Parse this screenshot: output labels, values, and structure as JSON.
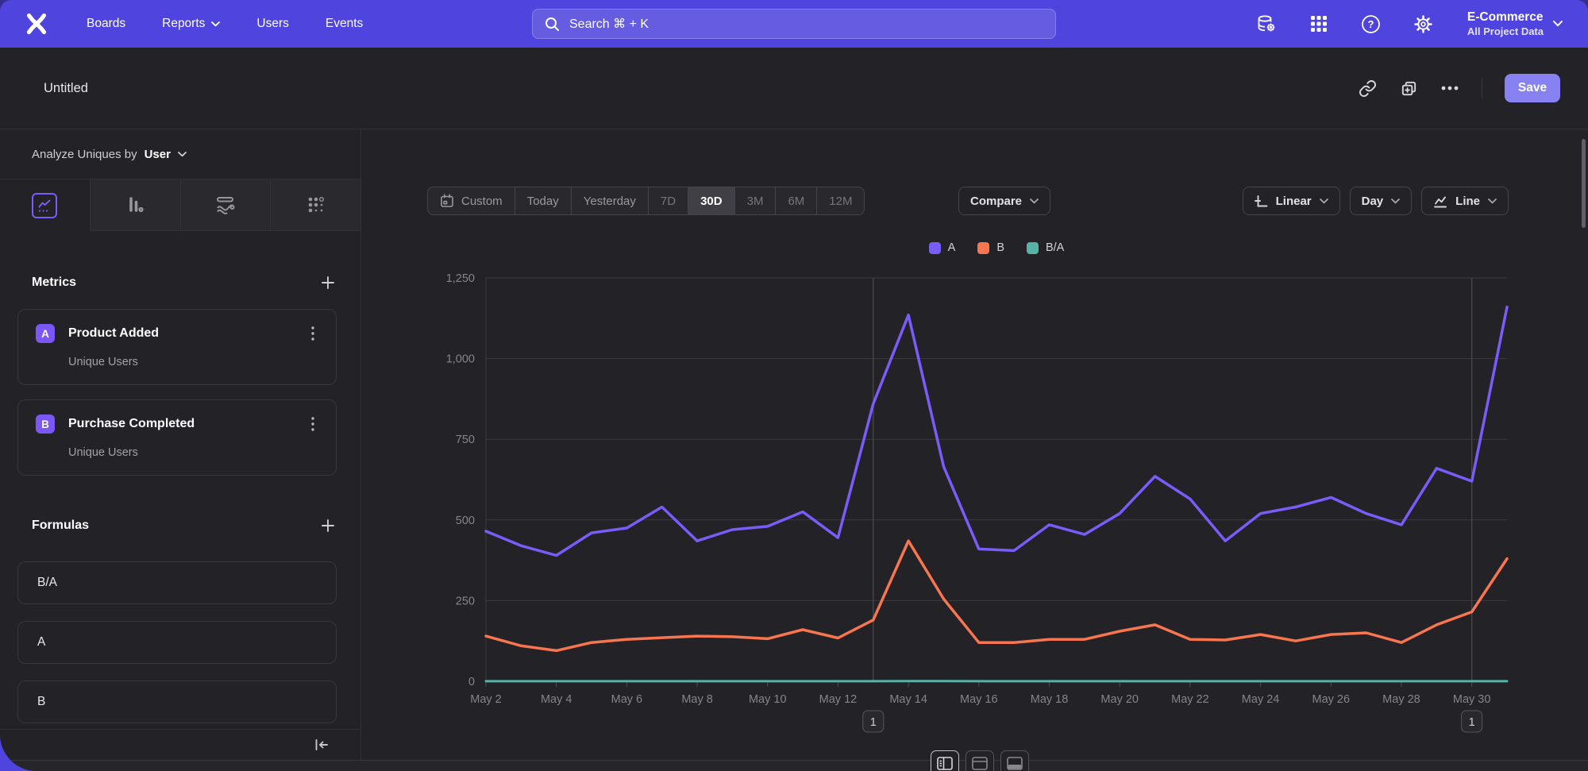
{
  "navbar": {
    "brand_icon": "mixpanel-logo",
    "items": [
      {
        "label": "Boards",
        "has_dropdown": false
      },
      {
        "label": "Reports",
        "has_dropdown": true
      },
      {
        "label": "Users",
        "has_dropdown": false
      },
      {
        "label": "Events",
        "has_dropdown": false
      }
    ],
    "search": {
      "placeholder": "Search  ⌘ + K",
      "icon": "search-icon"
    },
    "icons": [
      "data-management-icon",
      "apps-grid-icon",
      "help-icon",
      "settings-gear-icon"
    ],
    "project": {
      "name": "E-Commerce",
      "scope": "All Project Data"
    }
  },
  "report_header": {
    "title": "Untitled",
    "icons": [
      "link-icon",
      "duplicate-icon",
      "more-ellipsis-icon"
    ],
    "save_label": "Save"
  },
  "sidebar": {
    "analyze_prefix": "Analyze Uniques by",
    "analyze_value": "User",
    "tabs": [
      "insights-line-tab",
      "bar-chart-tab",
      "funnel-tab",
      "retention-tab"
    ],
    "selected_tab": "insights-line-tab",
    "metrics": {
      "title": "Metrics",
      "items": [
        {
          "letter": "A",
          "name": "Product Added",
          "subtitle": "Unique Users"
        },
        {
          "letter": "B",
          "name": "Purchase Completed",
          "subtitle": "Unique Users"
        }
      ]
    },
    "formulas": {
      "title": "Formulas",
      "items": [
        "B/A",
        "A",
        "B"
      ]
    },
    "collapse_icon": "collapse-sidebar-icon"
  },
  "controls": {
    "ranges": [
      "Custom",
      "Today",
      "Yesterday",
      "7D",
      "30D",
      "3M",
      "6M",
      "12M"
    ],
    "selected_range": "30D",
    "compare_label": "Compare",
    "scale_label": "Linear",
    "interval_label": "Day",
    "chart_type_label": "Line"
  },
  "layout_switch_icons": [
    "split-view-icon",
    "top-panel-icon",
    "bottom-panel-icon"
  ],
  "chart_data": {
    "type": "line",
    "title": "",
    "xlabel": "",
    "ylabel": "",
    "ylim": [
      0,
      1250
    ],
    "yticks": [
      0,
      250,
      500,
      750,
      1000,
      1250
    ],
    "grid": true,
    "legend_position": "top",
    "x": [
      "May 2",
      "May 3",
      "May 4",
      "May 5",
      "May 6",
      "May 7",
      "May 8",
      "May 9",
      "May 10",
      "May 11",
      "May 12",
      "May 13",
      "May 14",
      "May 15",
      "May 16",
      "May 17",
      "May 18",
      "May 19",
      "May 20",
      "May 21",
      "May 22",
      "May 23",
      "May 24",
      "May 25",
      "May 26",
      "May 27",
      "May 28",
      "May 29",
      "May 30",
      "May 31"
    ],
    "tick_every": 2,
    "series": [
      {
        "name": "A",
        "color": "#7a5cf8",
        "values": [
          465,
          420,
          390,
          460,
          475,
          540,
          435,
          470,
          480,
          525,
          445,
          860,
          1135,
          665,
          410,
          405,
          485,
          455,
          520,
          635,
          565,
          435,
          520,
          540,
          570,
          520,
          485,
          660,
          620,
          1160
        ]
      },
      {
        "name": "B",
        "color": "#f8764f",
        "values": [
          140,
          110,
          95,
          120,
          130,
          135,
          140,
          138,
          132,
          160,
          134,
          190,
          435,
          255,
          120,
          120,
          130,
          130,
          155,
          175,
          130,
          128,
          145,
          125,
          145,
          150,
          120,
          175,
          215,
          380
        ]
      },
      {
        "name": "B/A",
        "color": "#56b3a5",
        "values": [
          0.3,
          0.26,
          0.24,
          0.26,
          0.27,
          0.25,
          0.32,
          0.29,
          0.28,
          0.3,
          0.3,
          0.22,
          0.38,
          0.38,
          0.29,
          0.3,
          0.27,
          0.29,
          0.3,
          0.28,
          0.23,
          0.29,
          0.28,
          0.23,
          0.25,
          0.29,
          0.25,
          0.27,
          0.35,
          0.33
        ]
      }
    ],
    "annotations": [
      {
        "label": "1",
        "x": "May 13"
      },
      {
        "label": "1",
        "x": "May 30"
      }
    ]
  }
}
